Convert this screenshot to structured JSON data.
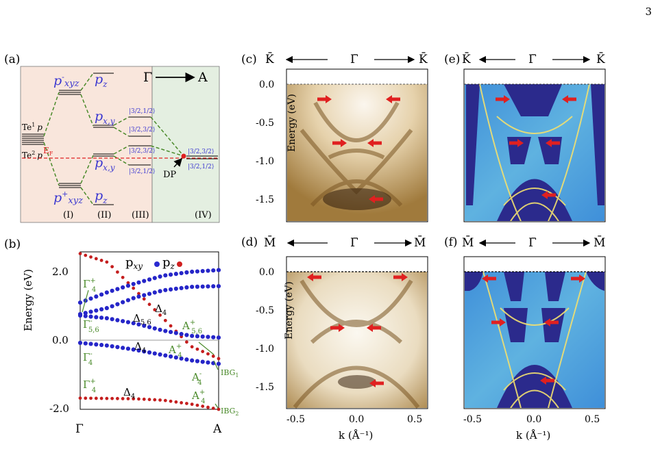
{
  "page_number": "3",
  "panel_a": {
    "label": "(a)",
    "direction_left": "Γ",
    "direction_right": "A",
    "te1": "Te",
    "te1_sup": "1",
    "te2": "Te",
    "te2_sup": "2",
    "p_letter": "p",
    "pxyz_minus_base": "p",
    "pxyz_minus_sup": "-",
    "pxyz_minus_sub": "xyz",
    "pxyz_plus_base": "p",
    "pxyz_plus_sup": "+",
    "pxyz_plus_sub": "xyz",
    "pz_top": "p",
    "pz_top_sub": "z",
    "pxy_top": "p",
    "pxy_top_sub": "x,y",
    "pxy_bottom": "p",
    "pxy_bottom_sub": "x,y",
    "pz_bottom": "p",
    "pz_bottom_sub": "z",
    "ef": "E",
    "ef_sub": "F",
    "kets": [
      "|3/2,1/2⟩",
      "|3/2,3/2⟩",
      "|3/2,3/2⟩",
      "|3/2,1/2⟩",
      "|3/2,3/2⟩",
      "|3/2,1/2⟩"
    ],
    "dp": "DP",
    "stages": [
      "(I)",
      "(II)",
      "(III)",
      "(IV)"
    ],
    "colors": {
      "left_bg": "#f9e6dc",
      "right_bg": "#e4efe1",
      "green": "#4a8a2a",
      "blue": "#3b37d0",
      "red": "#e02020"
    }
  },
  "panel_b": {
    "label": "(b)",
    "ylabel": "Energy (eV)",
    "yticks": [
      "2.0",
      "0.0",
      "-2.0"
    ],
    "xticks": [
      "Γ",
      "A"
    ],
    "legend_pxy": "p",
    "legend_pxy_sub": "xy",
    "legend_pz": "p",
    "legend_pz_sub": "z",
    "labels": {
      "g4p_top": [
        "Γ",
        "+",
        "4"
      ],
      "g56": [
        "Γ",
        "-",
        "5,6"
      ],
      "g4m": [
        "Γ",
        "-",
        "4"
      ],
      "g4p_bot": [
        "Γ",
        "+",
        "4"
      ],
      "d4_a": [
        "Δ",
        "4"
      ],
      "d56": [
        "Δ",
        "5,6"
      ],
      "d4_b": [
        "Δ",
        "4"
      ],
      "d4_c": [
        "Δ",
        "4"
      ],
      "a56": [
        "A",
        "+",
        "5,6"
      ],
      "a4p_mid": [
        "A",
        "+",
        "4"
      ],
      "a4m": [
        "A",
        "-",
        "4"
      ],
      "a4p_bot": [
        "A",
        "+",
        "4"
      ],
      "ibg1": [
        "IBG",
        "1"
      ],
      "ibg2": [
        "IBG",
        "2"
      ]
    },
    "chart_data": {
      "type": "line",
      "x_range": [
        0,
        1
      ],
      "ylim": [
        -2.0,
        2.5
      ],
      "series": [
        {
          "orbital": "pz",
          "x": [
            0,
            0.2,
            0.4,
            0.6,
            0.8,
            1.0
          ],
          "y": [
            2.45,
            2.2,
            1.4,
            0.6,
            -0.2,
            -0.55
          ]
        },
        {
          "orbital": "pxy",
          "x": [
            0,
            0.2,
            0.4,
            0.6,
            0.8,
            1.0
          ],
          "y": [
            1.05,
            1.35,
            1.6,
            1.82,
            1.93,
            1.98
          ]
        },
        {
          "orbital": "pxy",
          "x": [
            0,
            0.2,
            0.4,
            0.6,
            0.8,
            1.0
          ],
          "y": [
            0.72,
            0.9,
            1.2,
            1.4,
            1.5,
            1.52
          ]
        },
        {
          "orbital": "pxy",
          "x": [
            0,
            0.2,
            0.4,
            0.6,
            0.8,
            1.0
          ],
          "y": [
            0.68,
            0.6,
            0.45,
            0.25,
            0.1,
            0.05
          ]
        },
        {
          "orbital": "pxy",
          "x": [
            0,
            0.2,
            0.4,
            0.6,
            0.8,
            1.0
          ],
          "y": [
            -0.1,
            -0.18,
            -0.3,
            -0.45,
            -0.6,
            -0.7
          ]
        },
        {
          "orbital": "pz",
          "x": [
            0,
            0.2,
            0.4,
            0.6,
            0.8,
            1.0
          ],
          "y": [
            -1.68,
            -1.69,
            -1.7,
            -1.74,
            -1.85,
            -2.0
          ]
        }
      ]
    }
  },
  "panel_c": {
    "label": "(c)",
    "kleft": "K̄",
    "kcenter": "Γ̄",
    "kright": "K̄",
    "ylabel": "Energy (eV)",
    "yticks": [
      "0.0",
      "-0.5",
      "-1.0",
      "-1.5"
    ]
  },
  "panel_d": {
    "label": "(d)",
    "kleft": "M̄",
    "kcenter": "Γ̄",
    "kright": "M̄",
    "ylabel": "Energy (eV)",
    "yticks": [
      "0.0",
      "-0.5",
      "-1.0",
      "-1.5"
    ],
    "xticks": [
      "-0.5",
      "0.0",
      "0.5"
    ],
    "xlabel": "k (Å⁻¹)"
  },
  "panel_e": {
    "label": "(e)",
    "kleft": "K̄",
    "kcenter": "Γ̄",
    "kright": "K̄"
  },
  "panel_f": {
    "label": "(f)",
    "kleft": "M̄",
    "kcenter": "Γ̄",
    "kright": "M̄",
    "xticks": [
      "-0.5",
      "0.0",
      "0.5"
    ],
    "xlabel": "k (Å⁻¹)"
  }
}
